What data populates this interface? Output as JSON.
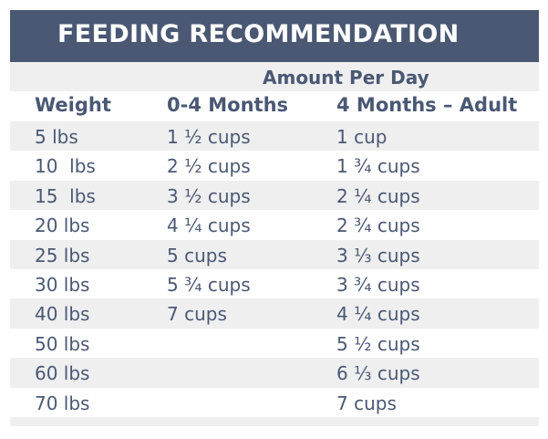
{
  "title": "FEEDING RECOMMENDATION",
  "subheader": "Amount Per Day",
  "columns": [
    "Weight",
    "0-4 Months",
    "4 Months – Adult"
  ],
  "rows": [
    [
      "5 lbs",
      "1 ½ cups",
      "1 cup"
    ],
    [
      "10  lbs",
      "2 ½ cups",
      "1 ¾ cups"
    ],
    [
      "15  lbs",
      "3 ½ cups",
      "2 ¼ cups"
    ],
    [
      "20 lbs",
      "4 ¼ cups",
      "2 ¾ cups"
    ],
    [
      "25 lbs",
      "5 cups",
      "3 ⅓ cups"
    ],
    [
      "30 lbs",
      "5 ¾ cups",
      "3 ¾ cups"
    ],
    [
      "40 lbs",
      "7 cups",
      "4 ¼ cups"
    ],
    [
      "50 lbs",
      "",
      "5 ½ cups"
    ],
    [
      "60 lbs",
      "",
      "6 ⅓ cups"
    ],
    [
      "70 lbs",
      "",
      "7 cups"
    ]
  ],
  "colors": {
    "header_bg": "#4a5874",
    "text": "#4a5874",
    "row_shade": "#efeff0",
    "row_plain": "#ffffff"
  }
}
